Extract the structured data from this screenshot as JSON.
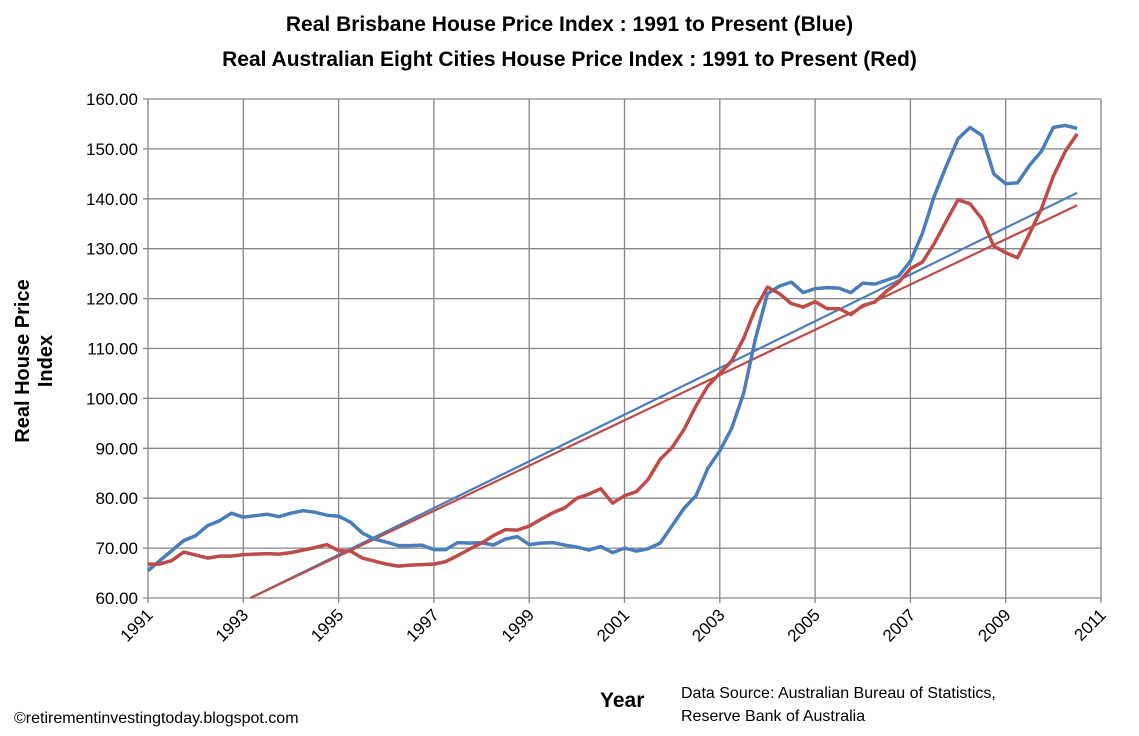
{
  "chart_data": {
    "type": "line",
    "title": "Real Brisbane House Price Index : 1991 to Present (Blue)",
    "subtitle": "Real Australian Eight Cities House Price Index : 1991 to Present (Red)",
    "xlabel": "Year",
    "ylabel": "Real House Price Index",
    "xlim": [
      1991,
      2011
    ],
    "ylim": [
      60,
      160
    ],
    "x_ticks": [
      "1991",
      "1993",
      "1995",
      "1997",
      "1999",
      "2001",
      "2003",
      "2005",
      "2007",
      "2009",
      "2011"
    ],
    "y_ticks": [
      "60.00",
      "70.00",
      "80.00",
      "90.00",
      "100.00",
      "110.00",
      "120.00",
      "130.00",
      "140.00",
      "150.00",
      "160.00"
    ],
    "grid": true,
    "x_start": 1991,
    "x_step": 0.25,
    "colors": {
      "blue": "#4a7ebb",
      "red": "#be4b48",
      "grid": "#868686"
    },
    "series": [
      {
        "key": "brisbane",
        "color": "#4a7ebb",
        "values": [
          65.5,
          67.5,
          69.5,
          71.5,
          72.5,
          74.5,
          75.5,
          77,
          76.2,
          76.5,
          76.8,
          76.3,
          77,
          77.5,
          77.2,
          76.6,
          76.4,
          75.2,
          73,
          71.8,
          71.2,
          70.5,
          70.5,
          70.6,
          69.7,
          69.7,
          71.1,
          71,
          71.1,
          70.6,
          71.8,
          72.3,
          70.7,
          71,
          71.1,
          70.6,
          70.2,
          69.6,
          70.3,
          69.1,
          70,
          69.4,
          69.9,
          71,
          74.5,
          78,
          80.5,
          86,
          89.5,
          94,
          101,
          112,
          121,
          122.5,
          123.3,
          121.2,
          122,
          122.2,
          122.1,
          121.2,
          123.1,
          122.9,
          123.7,
          124.5,
          127.5,
          133,
          140.5,
          146.5,
          152,
          154.3,
          152.7,
          145,
          143,
          143.2,
          146.7,
          149.5,
          154.3,
          154.7,
          154.1
        ]
      },
      {
        "key": "eight-cities",
        "color": "#be4b48",
        "values": [
          66.8,
          66.8,
          67.5,
          69.2,
          68.6,
          68,
          68.4,
          68.4,
          68.7,
          68.8,
          68.9,
          68.8,
          69.1,
          69.6,
          70.1,
          70.7,
          69.5,
          69.4,
          68,
          67.4,
          66.8,
          66.4,
          66.6,
          66.7,
          66.8,
          67.3,
          68.5,
          69.8,
          71,
          72.5,
          73.7,
          73.6,
          74.4,
          75.8,
          77.1,
          78.1,
          80,
          80.8,
          81.9,
          79,
          80.5,
          81.3,
          83.8,
          87.8,
          90.2,
          93.8,
          98.5,
          102.5,
          105,
          107.5,
          112,
          118,
          122.3,
          121,
          119,
          118.3,
          119.4,
          118,
          118,
          116.8,
          118.6,
          119.3,
          121.5,
          123.2,
          126,
          127.3,
          131,
          135.5,
          139.8,
          139,
          136,
          130.5,
          129.2,
          128.2,
          133,
          138,
          144.5,
          149.5,
          153
        ]
      }
    ],
    "trendlines": [
      {
        "key": "brisbane-trend",
        "color": "#4a7ebb",
        "x": [
          1993.15,
          2010.5
        ],
        "y": [
          60,
          141.2
        ]
      },
      {
        "key": "eight-cities-trend",
        "color": "#be4b48",
        "x": [
          1993.15,
          2010.5
        ],
        "y": [
          60,
          138.7
        ]
      }
    ]
  },
  "footer": {
    "source_line1": "Data Source: Australian Bureau of Statistics,",
    "source_line2": "Reserve Bank of Australia",
    "credit": "©retirementinvestingtoday.blogspot.com"
  }
}
